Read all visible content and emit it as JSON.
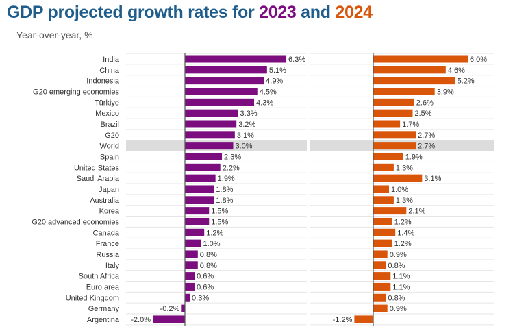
{
  "title": {
    "prefix": "GDP projected growth rates for ",
    "year1": "2023",
    "mid": " and ",
    "year2": "2024"
  },
  "subtitle": "Year-over-year, %",
  "colors": {
    "title": "#1f5d8c",
    "series2023": "#7b0d7f",
    "series2024": "#d9550a",
    "highlight": "#dcdcdc"
  },
  "chart_data": {
    "type": "bar",
    "orientation": "horizontal",
    "categories": [
      "India",
      "China",
      "Indonesia",
      "G20 emerging economies",
      "Türkiye",
      "Mexico",
      "Brazil",
      "G20",
      "World",
      "Spain",
      "United States",
      "Saudi Arabia",
      "Japan",
      "Australia",
      "Korea",
      "G20 advanced economies",
      "Canada",
      "France",
      "Russia",
      "Italy",
      "South Africa",
      "Euro area",
      "United Kingdom",
      "Germany",
      "Argentina"
    ],
    "highlight_category": "World",
    "series": [
      {
        "name": "2023",
        "values": [
          6.3,
          5.1,
          4.9,
          4.5,
          4.3,
          3.3,
          3.2,
          3.1,
          3.0,
          2.3,
          2.2,
          1.9,
          1.8,
          1.8,
          1.5,
          1.5,
          1.2,
          1.0,
          0.8,
          0.8,
          0.6,
          0.6,
          0.3,
          -0.2,
          -2.0
        ]
      },
      {
        "name": "2024",
        "values": [
          6.0,
          4.6,
          5.2,
          3.9,
          2.6,
          2.5,
          1.7,
          2.7,
          2.7,
          1.9,
          1.3,
          3.1,
          1.0,
          1.3,
          2.1,
          1.2,
          1.4,
          1.2,
          0.9,
          0.8,
          1.1,
          1.1,
          0.8,
          0.9,
          -1.2
        ]
      }
    ],
    "labels": [
      [
        "6.3%",
        "5.1%",
        "4.9%",
        "4.5%",
        "4.3%",
        "3.3%",
        "3.2%",
        "3.1%",
        "3.0%",
        "2.3%",
        "2.2%",
        "1.9%",
        "1.8%",
        "1.8%",
        "1.5%",
        "1.5%",
        "1.2%",
        "1.0%",
        "0.8%",
        "0.8%",
        "0.6%",
        "0.6%",
        "0.3%",
        "-0.2%",
        "-2.0%"
      ],
      [
        "6.0%",
        "4.6%",
        "5.2%",
        "3.9%",
        "2.6%",
        "2.5%",
        "1.7%",
        "2.7%",
        "2.7%",
        "1.9%",
        "1.3%",
        "3.1%",
        "1.0%",
        "1.3%",
        "2.1%",
        "1.2%",
        "1.4%",
        "1.2%",
        "0.9%",
        "0.8%",
        "1.1%",
        "1.1%",
        "0.8%",
        "0.9%",
        "-1.2%"
      ]
    ],
    "xlim": [
      -2.0,
      6.3
    ],
    "grid": true,
    "legend": "none (years shown in title colors)"
  }
}
